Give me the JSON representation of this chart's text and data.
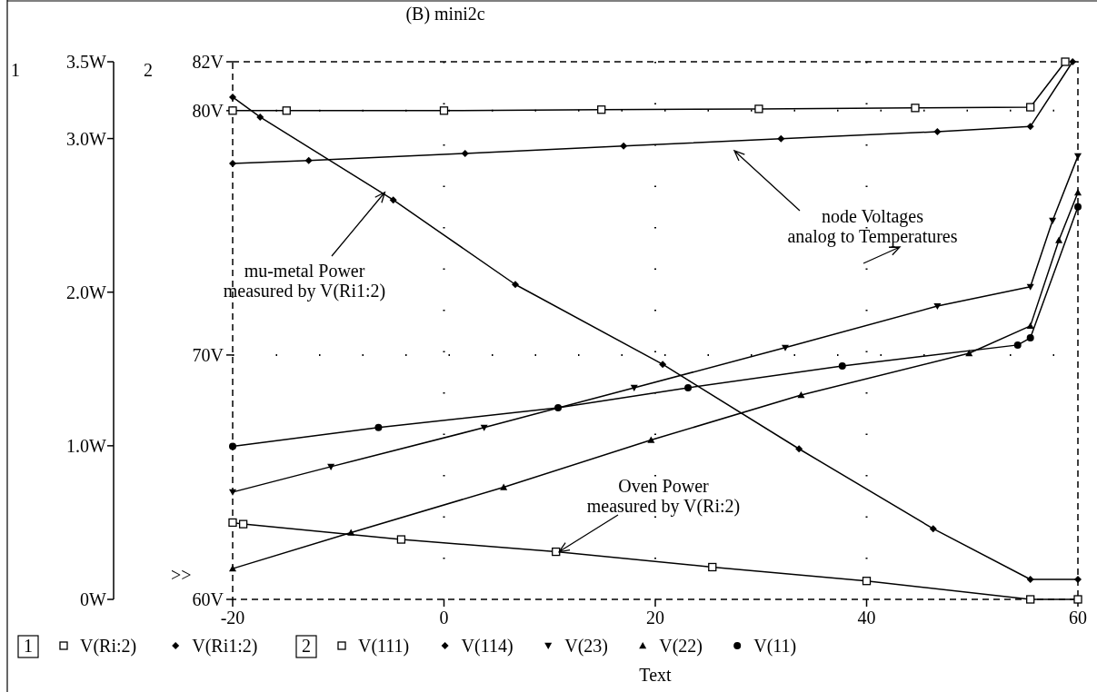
{
  "chart_data": {
    "type": "line",
    "title": "(B) mini2c",
    "xlabel": "Text",
    "ylabel": "1",
    "xlim": [
      -20,
      60
    ],
    "xticks": [
      -20,
      0,
      20,
      40,
      60
    ],
    "ylim": [
      0,
      3.5
    ],
    "yticks": [
      {
        "value": 0,
        "label": "0W"
      },
      {
        "value": 1,
        "label": "1.0W"
      },
      {
        "value": 2,
        "label": "2.0W"
      },
      {
        "value": 3,
        "label": "3.0W"
      },
      {
        "value": 3.5,
        "label": "3.5W"
      }
    ],
    "y2lim": [
      60,
      82
    ],
    "y2ticks": [
      {
        "value": 60,
        "label": "60V"
      },
      {
        "value": 70,
        "label": "70V"
      },
      {
        "value": 80,
        "label": "80V"
      },
      {
        "value": 82,
        "label": "82V"
      }
    ],
    "grid": true,
    "legend": "bottom",
    "series": [
      {
        "name": "V(Ri:2)",
        "color": "#000000",
        "marker": "square",
        "axis": "y",
        "x": [
          -20,
          -19,
          -4.05,
          10.6,
          25.4,
          40,
          55.5,
          60
        ],
        "values": [
          0.5,
          0.49,
          0.39,
          0.31,
          0.21,
          0.12,
          0,
          0
        ]
      },
      {
        "name": "V(Ri1:2)",
        "color": "#000000",
        "marker": "diamond",
        "axis": "y",
        "x": [
          -20,
          -17.4,
          -4.8,
          6.75,
          20.7,
          33.6,
          46.3,
          55.5,
          60
        ],
        "values": [
          3.27,
          3.14,
          2.6,
          2.05,
          1.53,
          0.98,
          0.46,
          0.13,
          0.13
        ]
      },
      {
        "name": "V(111)",
        "color": "#000000",
        "marker": "square",
        "axis": "y2",
        "x": [
          -20,
          -14.9,
          0,
          14.9,
          29.8,
          44.6,
          55.5,
          58.8
        ],
        "values": [
          80,
          80,
          80,
          80.04,
          80.07,
          80.11,
          80.14,
          82
        ]
      },
      {
        "name": "V(114)",
        "color": "#000000",
        "marker": "diamond",
        "axis": "y2",
        "x": [
          -20,
          -12.8,
          2,
          17,
          31.9,
          46.7,
          55.5,
          59.5
        ],
        "values": [
          77.84,
          77.96,
          78.25,
          78.55,
          78.85,
          79.14,
          79.35,
          82
        ]
      },
      {
        "name": "V(23)",
        "color": "#000000",
        "marker": "triangle-down",
        "axis": "y2",
        "x": [
          -20,
          -10.7,
          3.8,
          18,
          32.3,
          46.7,
          55.5,
          57.6,
          60
        ],
        "values": [
          64.39,
          65.43,
          67.03,
          68.66,
          70.3,
          72,
          72.79,
          75.5,
          78.14
        ]
      },
      {
        "name": "V(22)",
        "color": "#000000",
        "marker": "triangle",
        "axis": "y2",
        "x": [
          -20,
          -8.8,
          5.65,
          19.6,
          33.8,
          49.7,
          55.5,
          58.2,
          60
        ],
        "values": [
          61.26,
          62.73,
          64.59,
          66.52,
          68.36,
          70.07,
          71.19,
          74.7,
          76.65
        ]
      },
      {
        "name": "V(11)",
        "color": "#000000",
        "marker": "circle",
        "axis": "y2",
        "x": [
          -20,
          -6.2,
          10.8,
          23.1,
          37.7,
          54.3,
          55.5,
          60
        ],
        "values": [
          66.26,
          67.03,
          67.84,
          68.66,
          69.55,
          70.41,
          70.7,
          76.06
        ]
      }
    ],
    "annotations": [
      "node Voltages\nanalog to Temperatures",
      {
        "text": "mu-metal Power\nmeasured by V(Ri1:2)",
        "x": -5.6,
        "y": 2.65
      },
      {
        "text": "Oven Power\nmeasured by V(Ri:2)",
        "x": 10.9,
        "y": 0.31
      },
      ">>",
      "1",
      "2",
      "2"
    ]
  }
}
